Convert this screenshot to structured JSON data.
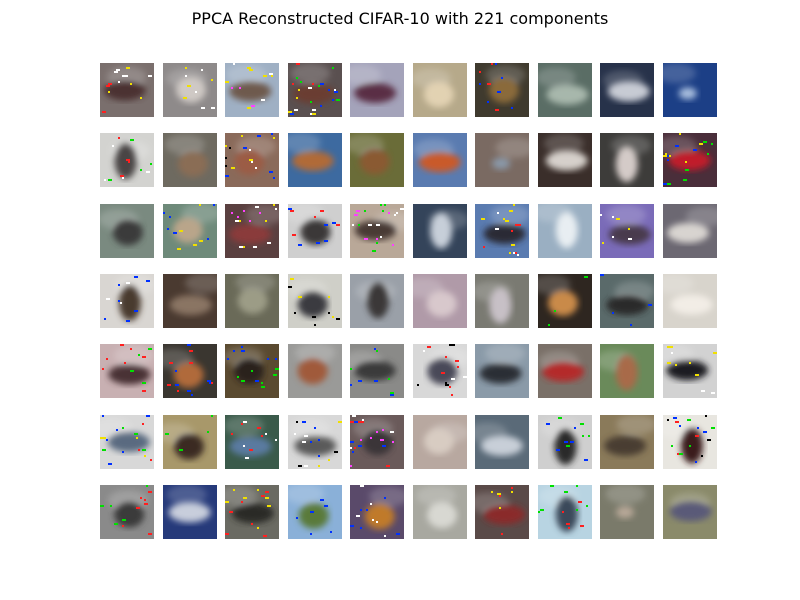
{
  "figure": {
    "title": "PPCA Reconstructed CIFAR-10 with 221 components"
  },
  "grid": {
    "rows": 7,
    "cols": 10,
    "tiles": [
      [
        {
          "bg": "#7a6f6d",
          "subject": "#4b3330",
          "shape": "wide",
          "noise": [
            "#f0e000",
            "#ff2020",
            "#ffffff"
          ]
        },
        {
          "bg": "#8e8a8a",
          "subject": "#cfc9c5",
          "shape": "blob",
          "noise": [
            "#f0e000",
            "#ffffff"
          ]
        },
        {
          "bg": "#9fb0c4",
          "subject": "#6e5a4e",
          "shape": "wide",
          "noise": [
            "#f0e000",
            "#ffffff",
            "#ff40ff"
          ]
        },
        {
          "bg": "#5a5050",
          "subject": "#6a3e30",
          "shape": "wide",
          "noise": [
            "#ff2020",
            "#00e000",
            "#ffffff",
            "#0030ff",
            "#f0e000"
          ]
        },
        {
          "bg": "#a4a3ba",
          "subject": "#5a2d45",
          "shape": "wide",
          "noise": []
        },
        {
          "bg": "#b6a98a",
          "subject": "#e2d2b2",
          "shape": "blob",
          "noise": []
        },
        {
          "bg": "#3f3a2e",
          "subject": "#8a6a3a",
          "shape": "blob",
          "noise": [
            "#ff2020",
            "#0030ff"
          ]
        },
        {
          "bg": "#5a6d65",
          "subject": "#a7b7ac",
          "shape": "wide",
          "noise": []
        },
        {
          "bg": "#27324a",
          "subject": "#c7cbd4",
          "shape": "wide",
          "noise": []
        },
        {
          "bg": "#1c3f86",
          "subject": "#a8bede",
          "shape": "small",
          "noise": []
        }
      ],
      [
        {
          "bg": "#d3d3d0",
          "subject": "#4a4444",
          "shape": "tall",
          "noise": [
            "#00e000",
            "#ff2020",
            "#ffffff"
          ]
        },
        {
          "bg": "#6e6a60",
          "subject": "#8a6d55",
          "shape": "blob",
          "noise": []
        },
        {
          "bg": "#8a6a5a",
          "subject": "#9b5c45",
          "shape": "blob",
          "noise": [
            "#ffffff",
            "#000000",
            "#0030ff",
            "#f0e000"
          ]
        },
        {
          "bg": "#3d6aa0",
          "subject": "#b06a38",
          "shape": "wide",
          "noise": []
        },
        {
          "bg": "#6a6c38",
          "subject": "#8a5a32",
          "shape": "blob",
          "noise": []
        },
        {
          "bg": "#5a7bb0",
          "subject": "#c95a2a",
          "shape": "wide",
          "noise": []
        },
        {
          "bg": "#7a6a62",
          "subject": "#8a98a8",
          "shape": "small",
          "noise": []
        },
        {
          "bg": "#3a2e2a",
          "subject": "#d6d0cb",
          "shape": "wide",
          "noise": []
        },
        {
          "bg": "#3d3c3a",
          "subject": "#d4cbc8",
          "shape": "tall",
          "noise": []
        },
        {
          "bg": "#4a2e3a",
          "subject": "#c01a2a",
          "shape": "wide",
          "noise": [
            "#f0e000",
            "#00e000",
            "#0030ff"
          ]
        }
      ],
      [
        {
          "bg": "#7a8a80",
          "subject": "#3a3a3a",
          "shape": "blob",
          "noise": []
        },
        {
          "bg": "#6e8a7a",
          "subject": "#b9a58a",
          "shape": "blob",
          "noise": [
            "#0030ff",
            "#f0e000"
          ]
        },
        {
          "bg": "#5a4040",
          "subject": "#8a3a3a",
          "shape": "wide",
          "noise": [
            "#f0e000",
            "#ffffff",
            "#ff40ff"
          ]
        },
        {
          "bg": "#cfcfcf",
          "subject": "#3a3838",
          "shape": "blob",
          "noise": [
            "#ff2020",
            "#0030ff"
          ]
        },
        {
          "bg": "#b9a898",
          "subject": "#4a3a36",
          "shape": "wide",
          "noise": [
            "#ff40ff",
            "#00e000",
            "#ffffff"
          ]
        },
        {
          "bg": "#34445a",
          "subject": "#c7cfd9",
          "shape": "tall",
          "noise": []
        },
        {
          "bg": "#5a7bb0",
          "subject": "#2a2a34",
          "shape": "wide",
          "noise": [
            "#f0e000",
            "#ff2020",
            "#ffffff"
          ]
        },
        {
          "bg": "#9aafc2",
          "subject": "#e8eef2",
          "shape": "tall",
          "noise": []
        },
        {
          "bg": "#7a6bb8",
          "subject": "#4a3a4e",
          "shape": "wide",
          "noise": [
            "#f0e000",
            "#ffffff"
          ]
        },
        {
          "bg": "#6c6872",
          "subject": "#d8d4d0",
          "shape": "wide",
          "noise": []
        }
      ],
      [
        {
          "bg": "#d9d6d2",
          "subject": "#4a3a2e",
          "shape": "tall",
          "noise": [
            "#0030ff",
            "#ffffff"
          ]
        },
        {
          "bg": "#4a3a30",
          "subject": "#8a7464",
          "shape": "wide",
          "noise": []
        },
        {
          "bg": "#6a6a58",
          "subject": "#9c9c86",
          "shape": "blob",
          "noise": []
        },
        {
          "bg": "#cfcfc8",
          "subject": "#3a3a40",
          "shape": "blob",
          "noise": [
            "#f0e000",
            "#000000"
          ]
        },
        {
          "bg": "#9aa0a8",
          "subject": "#3a3838",
          "shape": "tall",
          "noise": []
        },
        {
          "bg": "#b09aa8",
          "subject": "#d8c8cc",
          "shape": "blob",
          "noise": []
        },
        {
          "bg": "#7a7a72",
          "subject": "#c7c0c6",
          "shape": "tall",
          "noise": []
        },
        {
          "bg": "#2e2620",
          "subject": "#c98a4a",
          "shape": "blob",
          "noise": [
            "#00e000"
          ]
        },
        {
          "bg": "#5a6a6a",
          "subject": "#2a2a2a",
          "shape": "wide",
          "noise": [
            "#0030ff"
          ]
        },
        {
          "bg": "#d8d4cc",
          "subject": "#f2ede6",
          "shape": "wide",
          "noise": []
        }
      ],
      [
        {
          "bg": "#c8b0b2",
          "subject": "#4a3036",
          "shape": "wide",
          "noise": [
            "#00e000",
            "#ff2020"
          ]
        },
        {
          "bg": "#3a3630",
          "subject": "#b06a3a",
          "shape": "blob",
          "noise": [
            "#0030ff",
            "#ff2020"
          ]
        },
        {
          "bg": "#5a4a30",
          "subject": "#2a241e",
          "shape": "blob",
          "noise": [
            "#0030ff",
            "#00e000"
          ]
        },
        {
          "bg": "#9a9a98",
          "subject": "#a05a3a",
          "shape": "blob",
          "noise": []
        },
        {
          "bg": "#8a8a88",
          "subject": "#3a3a3a",
          "shape": "wide",
          "noise": [
            "#00e000",
            "#0030ff"
          ]
        },
        {
          "bg": "#d8d8d8",
          "subject": "#4a4a58",
          "shape": "blob",
          "noise": [
            "#000000",
            "#ffffff",
            "#ff2020"
          ]
        },
        {
          "bg": "#8a9aa8",
          "subject": "#2a2e34",
          "shape": "wide",
          "noise": []
        },
        {
          "bg": "#7a7068",
          "subject": "#b42a2a",
          "shape": "wide",
          "noise": []
        },
        {
          "bg": "#6a8a5a",
          "subject": "#a86a4a",
          "shape": "tall",
          "noise": []
        },
        {
          "bg": "#d2d2d2",
          "subject": "#1e1e22",
          "shape": "wide",
          "noise": [
            "#f0e000",
            "#ffffff"
          ]
        }
      ],
      [
        {
          "bg": "#d8d8d8",
          "subject": "#5a6a80",
          "shape": "wide",
          "noise": [
            "#ff2020",
            "#0030ff",
            "#00e000",
            "#f0e000"
          ]
        },
        {
          "bg": "#a8986a",
          "subject": "#3a2a22",
          "shape": "blob",
          "noise": [
            "#00e000"
          ]
        },
        {
          "bg": "#3a5a4a",
          "subject": "#5a7aa0",
          "shape": "wide",
          "noise": [
            "#ff2020",
            "#ffffff"
          ]
        },
        {
          "bg": "#d8d8d8",
          "subject": "#5a5a5a",
          "shape": "wide",
          "noise": [
            "#000000",
            "#ffffff",
            "#0030ff",
            "#f0e000"
          ]
        },
        {
          "bg": "#6a5a5a",
          "subject": "#3a3638",
          "shape": "blob",
          "noise": [
            "#ff2020",
            "#0030ff",
            "#ff40ff",
            "#ffffff"
          ]
        },
        {
          "bg": "#b8a8a0",
          "subject": "#d8ccc2",
          "shape": "blob",
          "noise": []
        },
        {
          "bg": "#5a6a78",
          "subject": "#c8cfd8",
          "shape": "wide",
          "noise": []
        },
        {
          "bg": "#cfcfcf",
          "subject": "#2a2a2a",
          "shape": "tall",
          "noise": [
            "#00e000",
            "#0030ff"
          ]
        },
        {
          "bg": "#8a7a5a",
          "subject": "#4a3e30",
          "shape": "wide",
          "noise": []
        },
        {
          "bg": "#e8e6e0",
          "subject": "#3a1a1a",
          "shape": "tall",
          "noise": [
            "#ff2020",
            "#00e000",
            "#0030ff",
            "#000000"
          ]
        }
      ],
      [
        {
          "bg": "#8a8a8a",
          "subject": "#3a3a3a",
          "shape": "blob",
          "noise": [
            "#00e000",
            "#ff2020"
          ]
        },
        {
          "bg": "#263a7a",
          "subject": "#c8cedc",
          "shape": "wide",
          "noise": []
        },
        {
          "bg": "#6a6a62",
          "subject": "#2a2a28",
          "shape": "wide",
          "noise": [
            "#ff2020",
            "#f0e000"
          ]
        },
        {
          "bg": "#8ab0d8",
          "subject": "#5a7a3a",
          "shape": "blob",
          "noise": [
            "#0030ff"
          ]
        },
        {
          "bg": "#5a4a6a",
          "subject": "#c07a2a",
          "shape": "blob",
          "noise": [
            "#0030ff",
            "#ffffff"
          ]
        },
        {
          "bg": "#a8a8a0",
          "subject": "#d8d8d2",
          "shape": "blob",
          "noise": []
        },
        {
          "bg": "#5a4a48",
          "subject": "#8a2a2a",
          "shape": "wide",
          "noise": [
            "#f0e000",
            "#ff2020"
          ]
        },
        {
          "bg": "#b8d4e2",
          "subject": "#3a4a5a",
          "shape": "tall",
          "noise": [
            "#ff2020",
            "#00e000"
          ]
        },
        {
          "bg": "#7a7a6a",
          "subject": "#b8a898",
          "shape": "small",
          "noise": []
        },
        {
          "bg": "#8a8a6a",
          "subject": "#5a5a78",
          "shape": "wide",
          "noise": []
        }
      ]
    ]
  }
}
